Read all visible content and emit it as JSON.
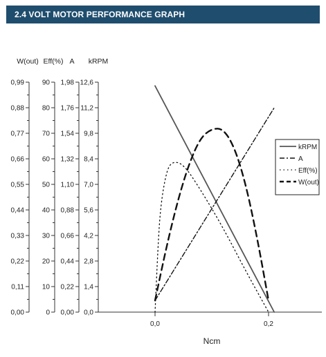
{
  "header": {
    "title": "2.4 VOLT MOTOR PERFORMANCE GRAPH"
  },
  "chart_data": {
    "type": "line",
    "title": "",
    "xlabel": "Ncm",
    "x_ticks": [
      "0,0",
      "0,2"
    ],
    "xlim": [
      -0.1,
      0.26
    ],
    "y_axes": [
      {
        "label": "W(out)",
        "min": 0,
        "max": 0.99,
        "ticks": [
          "0,00",
          "0,11",
          "0,22",
          "0,33",
          "0,44",
          "0,55",
          "0,66",
          "0,77",
          "0,88",
          "0,99"
        ]
      },
      {
        "label": "Eff(%)",
        "min": 0,
        "max": 90,
        "ticks": [
          "0",
          "10",
          "20",
          "30",
          "40",
          "50",
          "60",
          "70",
          "80",
          "90"
        ]
      },
      {
        "label": "A",
        "min": 0,
        "max": 1.98,
        "ticks": [
          "0,00",
          "0,22",
          "0,44",
          "0,66",
          "0,88",
          "1,10",
          "1,32",
          "1,54",
          "1,76",
          "1,98"
        ]
      },
      {
        "label": "kRPM",
        "min": 0,
        "max": 12.6,
        "ticks": [
          "0,0",
          "1,4",
          "2,8",
          "4,2",
          "5,6",
          "7,0",
          "8,4",
          "9,8",
          "11,2",
          "12,6"
        ]
      }
    ],
    "series": [
      {
        "name": "kRPM",
        "axis": 3,
        "style": "solid",
        "x": [
          0.0,
          0.21
        ],
        "y": [
          12.4,
          0.0
        ]
      },
      {
        "name": "A",
        "axis": 2,
        "style": "dashdot",
        "x": [
          0.0,
          0.21
        ],
        "y": [
          0.1,
          1.76
        ]
      },
      {
        "name": "Eff(%)",
        "axis": 1,
        "style": "dotted",
        "x": [
          0.0,
          0.005,
          0.01,
          0.02,
          0.03,
          0.05,
          0.08,
          0.12,
          0.16,
          0.2
        ],
        "y": [
          0,
          25,
          42,
          55,
          59,
          58,
          48,
          33,
          16,
          0
        ]
      },
      {
        "name": "W(out)",
        "axis": 0,
        "style": "dashed",
        "x": [
          0.0,
          0.02,
          0.04,
          0.06,
          0.08,
          0.1,
          0.12,
          0.14,
          0.16,
          0.18,
          0.2
        ],
        "y": [
          0.05,
          0.28,
          0.48,
          0.64,
          0.75,
          0.79,
          0.79,
          0.71,
          0.55,
          0.32,
          0.05
        ]
      }
    ],
    "legend_position": "right"
  }
}
